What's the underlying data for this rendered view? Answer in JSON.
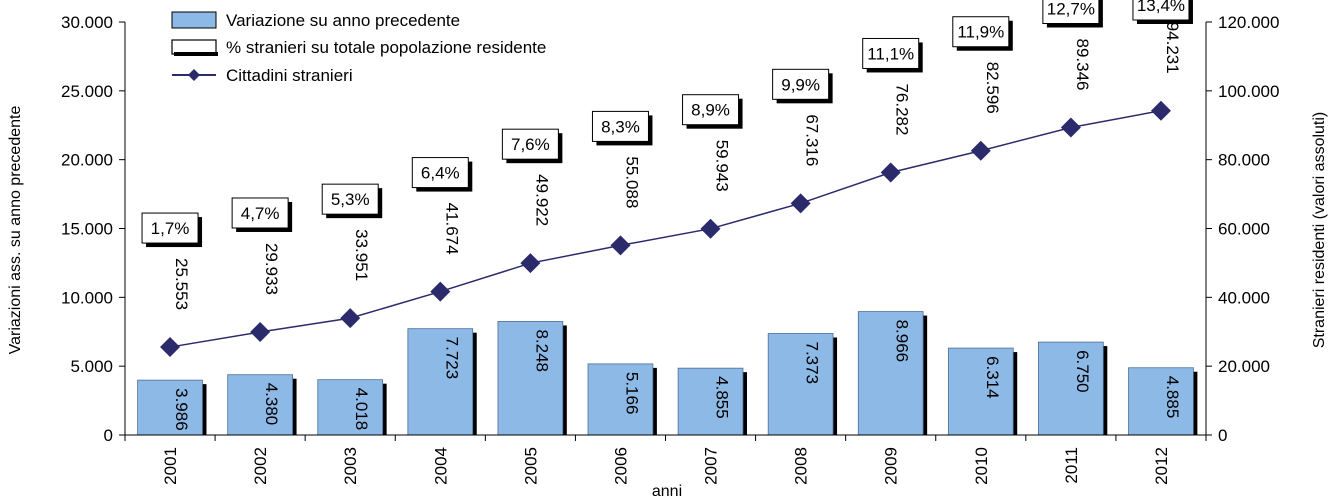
{
  "chart_data": {
    "type": "bar",
    "xlabel": "anni",
    "ylabel_left": "Variazioni ass. su anno precedente",
    "ylabel_right": "Stranieri residenti (valori assoluti)",
    "categories": [
      "2001",
      "2002",
      "2003",
      "2004",
      "2005",
      "2006",
      "2007",
      "2008",
      "2009",
      "2010",
      "2011",
      "2012"
    ],
    "ylim_left": [
      0,
      30000
    ],
    "ylim_right": [
      0,
      120000
    ],
    "yticks_left": [
      "0",
      "5.000",
      "10.000",
      "15.000",
      "20.000",
      "25.000",
      "30.000"
    ],
    "yticks_right": [
      "0",
      "20.000",
      "40.000",
      "60.000",
      "80.000",
      "100.000",
      "120.000"
    ],
    "legend_position": "top-left",
    "series": [
      {
        "name": "Variazione su anno precedente",
        "type": "bar",
        "axis": "left",
        "color": "#8DB9E6",
        "values": [
          3986,
          4380,
          4018,
          7723,
          8248,
          5166,
          4855,
          7373,
          8966,
          6314,
          6750,
          4885
        ],
        "labels": [
          "3.986",
          "4.380",
          "4.018",
          "7.723",
          "8.248",
          "5.166",
          "4.855",
          "7.373",
          "8.966",
          "6.314",
          "6.750",
          "4.885"
        ]
      },
      {
        "name": "Cittadini stranieri",
        "type": "line",
        "axis": "right",
        "color": "#2B2A6B",
        "values": [
          25553,
          29933,
          33951,
          41674,
          49922,
          55088,
          59943,
          67316,
          76282,
          82596,
          89346,
          94231
        ],
        "labels": [
          "25.553",
          "29.933",
          "33.951",
          "41.674",
          "49.922",
          "55.088",
          "59.943",
          "67.316",
          "76.282",
          "82.596",
          "89.346",
          "94.231"
        ]
      },
      {
        "name": "% stranieri su totale popolazione residente",
        "type": "annotation",
        "values": [
          1.7,
          4.7,
          5.3,
          6.4,
          7.6,
          8.3,
          8.9,
          9.9,
          11.1,
          11.9,
          12.7,
          13.4
        ],
        "labels": [
          "1,7%",
          "4,7%",
          "5,3%",
          "6,4%",
          "7,6%",
          "8,3%",
          "8,9%",
          "9,9%",
          "11,1%",
          "11,9%",
          "12,7%",
          "13,4%"
        ]
      }
    ]
  }
}
